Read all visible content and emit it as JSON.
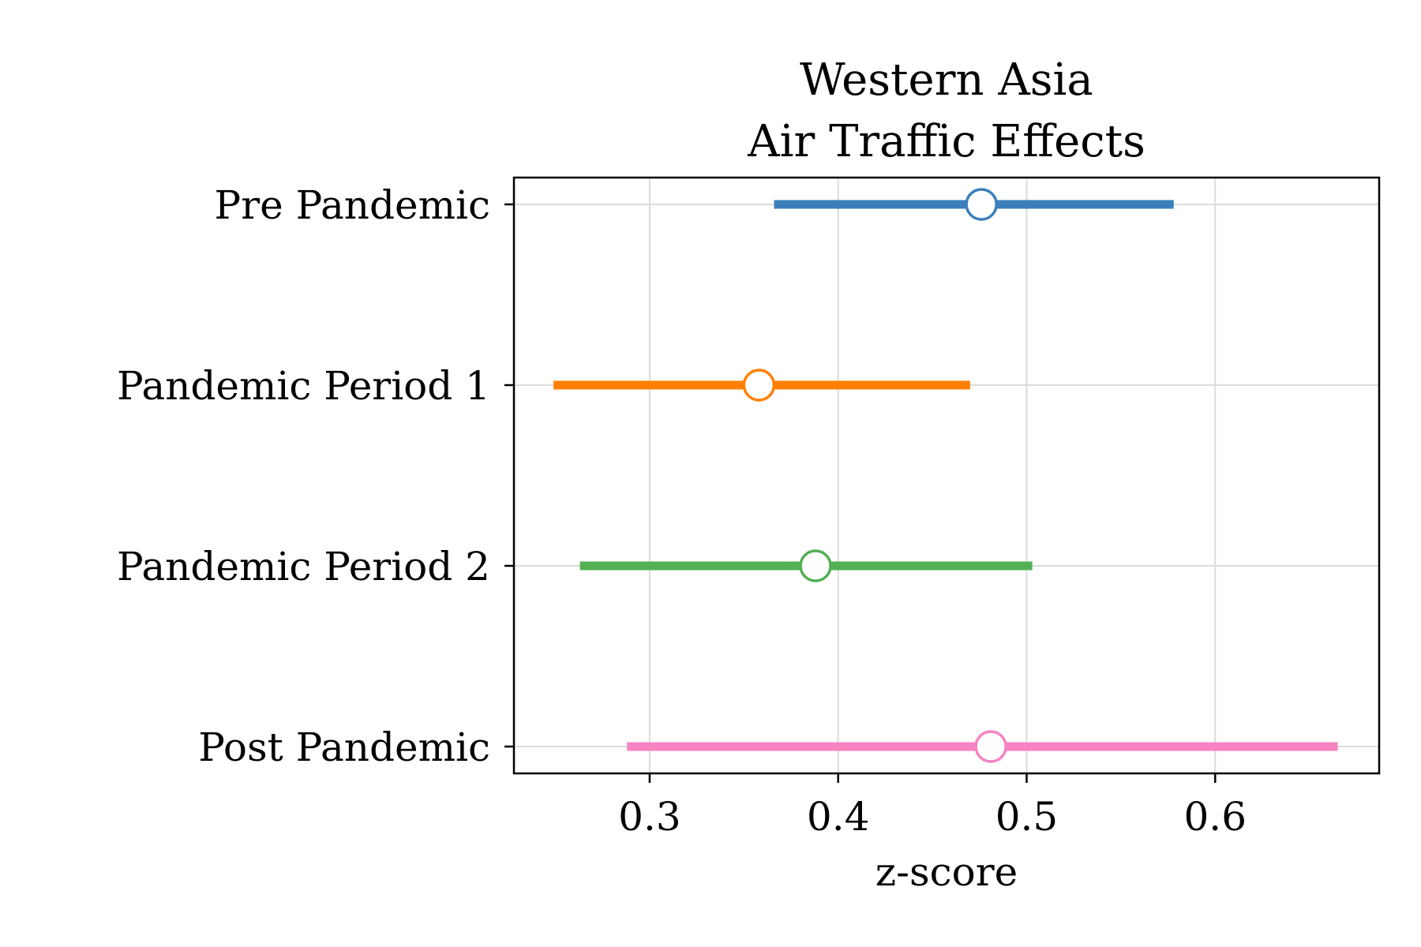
{
  "chart_data": {
    "type": "forest",
    "title": [
      "Western Asia",
      "Air Traffic Effects"
    ],
    "xlabel": "z-score",
    "ylabel": "",
    "xlim": [
      0.228,
      0.687
    ],
    "xticks": [
      0.3,
      0.4,
      0.5,
      0.6
    ],
    "xtick_labels": [
      "0.3",
      "0.4",
      "0.5",
      "0.6"
    ],
    "grid": true,
    "series": [
      {
        "name": "Pre Pandemic",
        "estimate": 0.476,
        "low": 0.366,
        "high": 0.578,
        "color": "#3a7fbb"
      },
      {
        "name": "Pandemic Period 1",
        "estimate": 0.358,
        "low": 0.249,
        "high": 0.47,
        "color": "#ff8000"
      },
      {
        "name": "Pandemic Period 2",
        "estimate": 0.388,
        "low": 0.263,
        "high": 0.503,
        "color": "#53b054"
      },
      {
        "name": "Post Pandemic",
        "estimate": 0.481,
        "low": 0.288,
        "high": 0.665,
        "color": "#f783c3"
      }
    ]
  }
}
